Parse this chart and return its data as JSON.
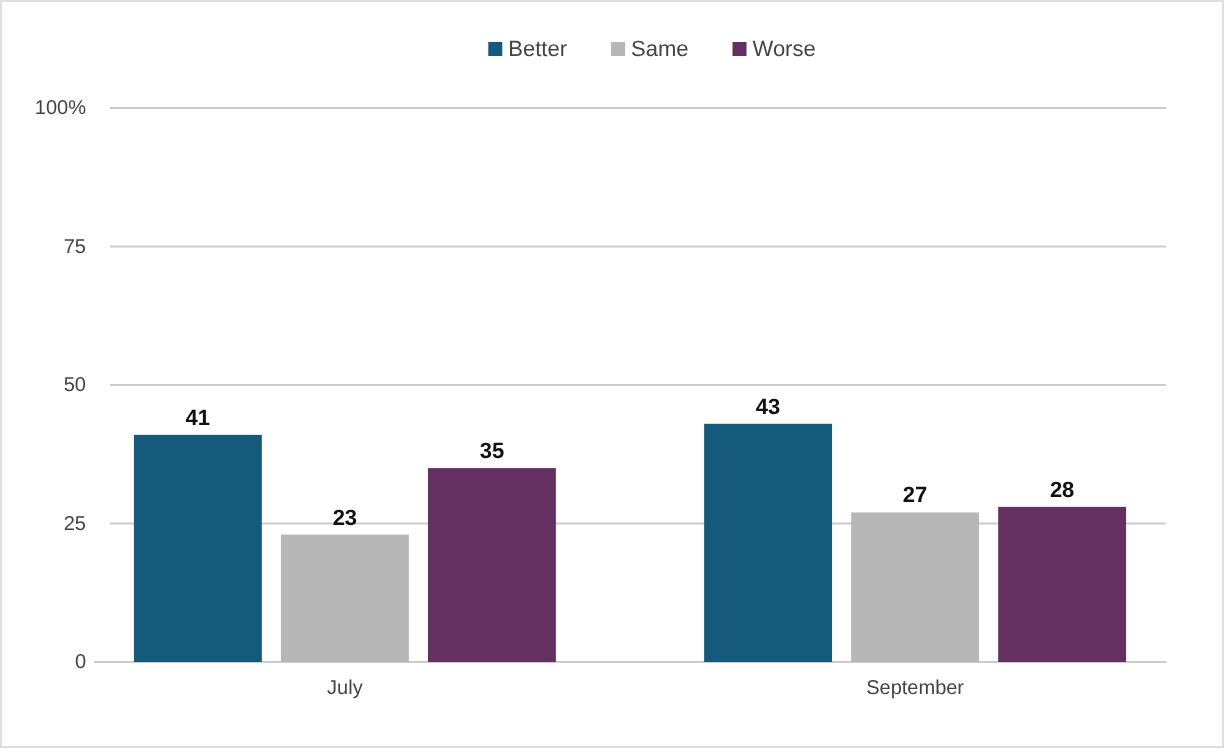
{
  "chart_data": {
    "type": "bar",
    "categories": [
      "July",
      "September"
    ],
    "series": [
      {
        "name": "Better",
        "color": "#165a7b",
        "values": [
          41,
          43
        ]
      },
      {
        "name": "Same",
        "color": "#b7b7b7",
        "values": [
          23,
          27
        ]
      },
      {
        "name": "Worse",
        "color": "#642f61",
        "values": [
          35,
          28
        ]
      }
    ],
    "ylim": [
      0,
      100
    ],
    "yticks": [
      0,
      25,
      50,
      75,
      {
        "value": 100,
        "label": "100%"
      }
    ],
    "grid": "y",
    "legend": "top",
    "data_labels": true
  }
}
